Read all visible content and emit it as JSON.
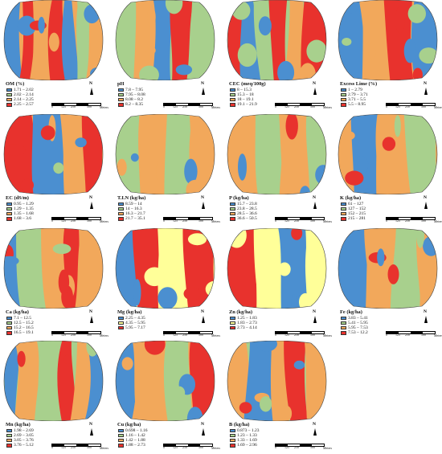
{
  "colors": {
    "blue": "#4b8fd0",
    "green": "#a8d08d",
    "orange": "#f2a85b",
    "red": "#e8322d",
    "yellow": "#ffff99"
  },
  "scale_bar": {
    "ticks": [
      "0",
      "125",
      "250",
      "500"
    ],
    "unit": "Meters"
  },
  "north_label": "N",
  "panels": [
    {
      "title": "OM (%)",
      "classes": [
        "1.71 – 2.02",
        "2.02 – 2.14",
        "2.14 – 2.25",
        "2.25 – 2.57"
      ],
      "colors": [
        "blue",
        "green",
        "orange",
        "red"
      ]
    },
    {
      "title": "pH",
      "classes": [
        "7.8 – 7.95",
        "7.95 – 8.08",
        "8.08 – 8.2",
        "8.2 – 8.35"
      ],
      "colors": [
        "blue",
        "green",
        "orange",
        "red"
      ]
    },
    {
      "title": "CEC (meq/100g)",
      "classes": [
        "8 – 15.3",
        "15.3 – 18",
        "18 – 19.1",
        "19.1 – 21.9"
      ],
      "colors": [
        "blue",
        "green",
        "orange",
        "red"
      ]
    },
    {
      "title": "Excess Lime (%)",
      "classes": [
        "1 – 2.79",
        "2.79 – 3.71",
        "3.71 – 5.5",
        "5.5 – 8.95"
      ],
      "colors": [
        "blue",
        "green",
        "orange",
        "red"
      ]
    },
    {
      "title": "EC (dS/m)",
      "classes": [
        "0.95 – 1.29",
        "1.29 – 1.35",
        "1.35 – 1.68",
        "1.68 – 3.6"
      ],
      "colors": [
        "blue",
        "green",
        "orange",
        "red"
      ]
    },
    {
      "title": "T.I.N (kg/ha)",
      "classes": [
        "8.59 – 14",
        "14 – 16.3",
        "16.3 – 21.7",
        "21.7 – 35.1"
      ],
      "colors": [
        "blue",
        "green",
        "orange",
        "red"
      ]
    },
    {
      "title": "P (kg/ha)",
      "classes": [
        "15.7 – 23.8",
        "23.8 – 28.5",
        "28.5 – 36.6",
        "36.6 – 50.5"
      ],
      "colors": [
        "blue",
        "green",
        "orange",
        "red"
      ]
    },
    {
      "title": "K (kg/ha)",
      "classes": [
        "61 – 127",
        "127 – 152",
        "152 – 215",
        "215 – 281"
      ],
      "colors": [
        "blue",
        "green",
        "orange",
        "red"
      ]
    },
    {
      "title": "Ca (kg/ha)",
      "classes": [
        "7.1 – 12.5",
        "12.5 – 15.2",
        "15.2 – 16.5",
        "16.5 – 19.1"
      ],
      "colors": [
        "blue",
        "green",
        "orange",
        "red"
      ]
    },
    {
      "title": "Mg (kg/ha)",
      "classes": [
        "2.25 – 4.35",
        "4.35 – 5.95",
        "5.95 – 7.17"
      ],
      "colors": [
        "blue",
        "yellow",
        "red"
      ]
    },
    {
      "title": "Zn (kg/ha)",
      "classes": [
        "1.25 – 1.83",
        "1.83 – 2.73",
        "2.73 – 4.14"
      ],
      "colors": [
        "blue",
        "yellow",
        "red"
      ]
    },
    {
      "title": "Fe (kg/ha)",
      "classes": [
        "3.83 – 5.41",
        "5.41 – 5.95",
        "5.95 – 7.53",
        "7.53 – 12.2"
      ],
      "colors": [
        "blue",
        "green",
        "orange",
        "red"
      ]
    },
    {
      "title": "Mn (kg/ha)",
      "classes": [
        "1.98 – 2.69",
        "2.69 – 3.05",
        "3.05 – 3.76",
        "3.76 – 5.12"
      ],
      "colors": [
        "blue",
        "green",
        "orange",
        "red"
      ]
    },
    {
      "title": "Cu (kg/ha)",
      "classes": [
        "0.698 – 1.16",
        "1.16 – 1.42",
        "1.42 – 1.88",
        "1.88 – 2.73"
      ],
      "colors": [
        "blue",
        "green",
        "orange",
        "red"
      ]
    },
    {
      "title": "B (kg/ha)",
      "classes": [
        "0.873 – 1.23",
        "1.23 – 1.33",
        "1.33 – 1.69",
        "1.69 – 2.96"
      ],
      "colors": [
        "blue",
        "green",
        "orange",
        "red"
      ]
    }
  ]
}
